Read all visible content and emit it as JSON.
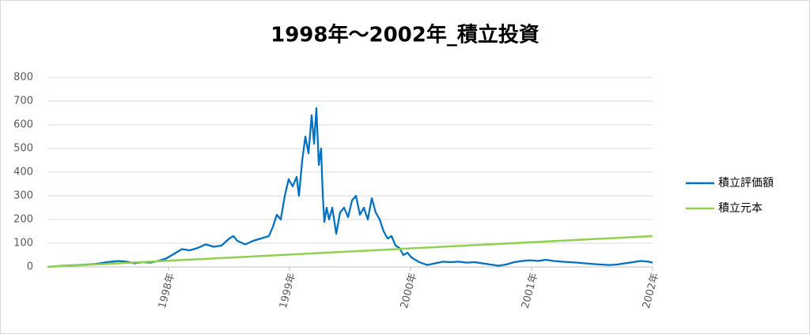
{
  "chart_data": {
    "type": "line",
    "title": "1998年～2002年_積立投資",
    "xlim": [
      1997,
      2002
    ],
    "xticks": [
      {
        "value": 1998,
        "label": "1998年"
      },
      {
        "value": 1999,
        "label": "1999年"
      },
      {
        "value": 2000,
        "label": "2000年"
      },
      {
        "value": 2001,
        "label": "2001年"
      },
      {
        "value": 2002,
        "label": "2002年"
      }
    ],
    "ylim": [
      0,
      800
    ],
    "yticks": [
      0,
      100,
      200,
      300,
      400,
      500,
      600,
      700,
      800
    ],
    "grid": true,
    "legend": "right",
    "series": [
      {
        "name": "積立評価額",
        "color": "#0070c0",
        "x": [
          1997.0,
          1997.131,
          1997.261,
          1997.392,
          1997.49,
          1997.588,
          1997.654,
          1997.719,
          1997.784,
          1997.85,
          1997.915,
          1997.98,
          1998.046,
          1998.111,
          1998.176,
          1998.242,
          1998.307,
          1998.373,
          1998.438,
          1998.503,
          1998.536,
          1998.569,
          1998.634,
          1998.699,
          1998.765,
          1998.83,
          1998.863,
          1998.895,
          1998.928,
          1998.961,
          1998.993,
          1999.026,
          1999.059,
          1999.078,
          1999.105,
          1999.131,
          1999.157,
          1999.183,
          1999.203,
          1999.222,
          1999.242,
          1999.261,
          1999.275,
          1999.288,
          1999.307,
          1999.327,
          1999.353,
          1999.386,
          1999.418,
          1999.451,
          1999.484,
          1999.516,
          1999.549,
          1999.582,
          1999.614,
          1999.647,
          1999.68,
          1999.712,
          1999.745,
          1999.778,
          1999.81,
          1999.843,
          1999.876,
          1999.908,
          1999.941,
          1999.974,
          2000.007,
          2000.072,
          2000.137,
          2000.203,
          2000.268,
          2000.333,
          2000.399,
          2000.464,
          2000.529,
          2000.595,
          2000.66,
          2000.725,
          2000.791,
          2000.856,
          2000.922,
          2000.987,
          2001.052,
          2001.118,
          2001.183,
          2001.248,
          2001.314,
          2001.379,
          2001.444,
          2001.51,
          2001.575,
          2001.641,
          2001.706,
          2001.771,
          2001.837,
          2001.902,
          2001.967,
          2002.0
        ],
        "values": [
          0,
          5,
          8,
          12,
          20,
          25,
          22,
          15,
          20,
          18,
          25,
          35,
          55,
          75,
          70,
          80,
          95,
          85,
          90,
          120,
          130,
          110,
          95,
          110,
          120,
          130,
          170,
          220,
          200,
          300,
          370,
          340,
          380,
          300,
          450,
          550,
          480,
          640,
          520,
          670,
          430,
          500,
          300,
          190,
          250,
          200,
          250,
          140,
          230,
          250,
          210,
          280,
          300,
          220,
          250,
          200,
          290,
          230,
          200,
          150,
          120,
          130,
          90,
          80,
          50,
          60,
          40,
          20,
          8,
          15,
          22,
          20,
          22,
          18,
          20,
          15,
          10,
          5,
          10,
          20,
          25,
          28,
          25,
          30,
          25,
          22,
          20,
          18,
          15,
          12,
          10,
          8,
          10,
          15,
          20,
          25,
          22,
          18
        ]
      },
      {
        "name": "積立元本",
        "color": "#92d050",
        "x": [
          1997,
          2002
        ],
        "values": [
          0,
          130
        ]
      }
    ]
  }
}
